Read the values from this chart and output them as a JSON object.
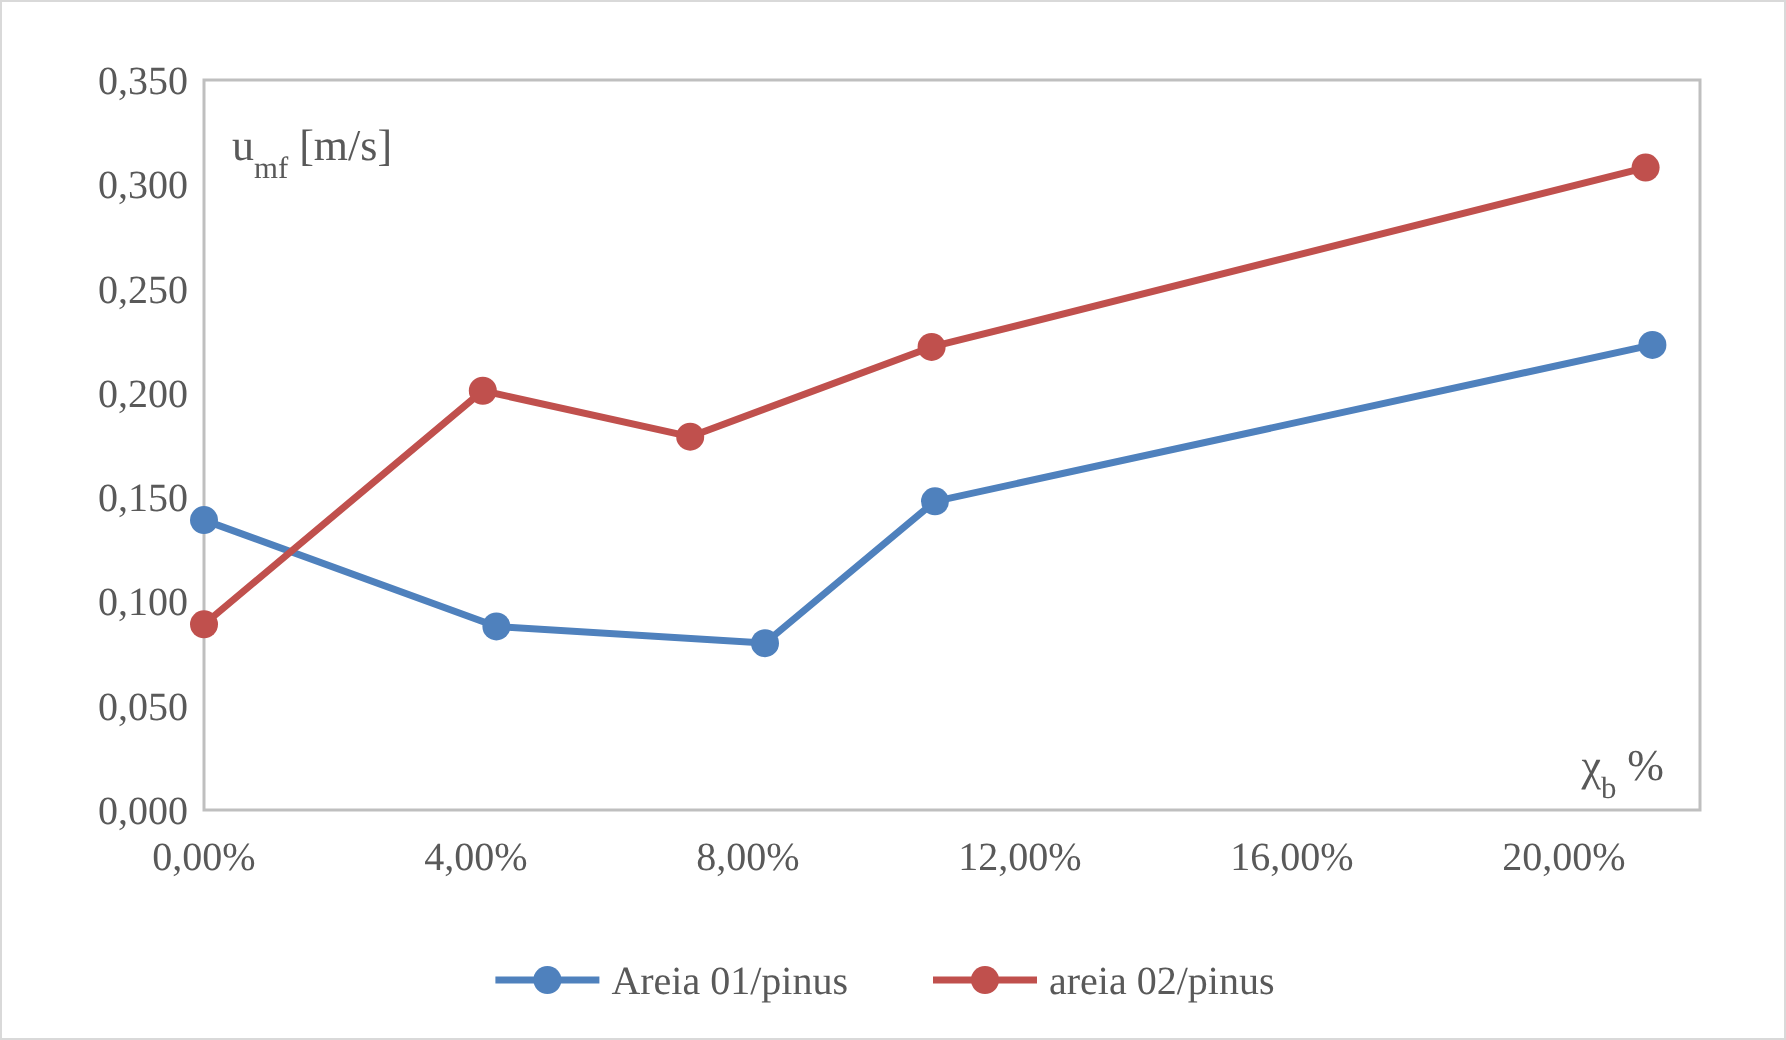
{
  "chart_data": {
    "type": "line",
    "xlabel": "χ$_{b}$ %",
    "ylabel": "u$_{mf}$ [m/s]",
    "xlim": [
      0,
      0.22
    ],
    "xticks": [
      {
        "value": 0,
        "label": "0,00%"
      },
      {
        "value": 0.04,
        "label": "4,00%"
      },
      {
        "value": 0.08,
        "label": "8,00%"
      },
      {
        "value": 0.12,
        "label": "12,00%"
      },
      {
        "value": 0.16,
        "label": "16,00%"
      },
      {
        "value": 0.2,
        "label": "20,00%"
      }
    ],
    "ylim": [
      0,
      0.35
    ],
    "yticks": [
      {
        "value": 0,
        "label": "0,000"
      },
      {
        "value": 0.05,
        "label": "0,050"
      },
      {
        "value": 0.1,
        "label": "0,100"
      },
      {
        "value": 0.15,
        "label": "0,150"
      },
      {
        "value": 0.2,
        "label": "0,200"
      },
      {
        "value": 0.25,
        "label": "0,250"
      },
      {
        "value": 0.3,
        "label": "0,300"
      },
      {
        "value": 0.35,
        "label": "0,350"
      }
    ],
    "series": [
      {
        "name": "Areia 01/pinus",
        "color": "#4f81bd",
        "x": [
          0,
          0.043,
          0.0825,
          0.1075,
          0.213
        ],
        "values": [
          0.139,
          0.088,
          0.08,
          0.148,
          0.223
        ]
      },
      {
        "name": "areia 02/pinus",
        "color": "#c0504d",
        "x": [
          0,
          0.041,
          0.0715,
          0.107,
          0.212
        ],
        "values": [
          0.089,
          0.201,
          0.179,
          0.222,
          0.308
        ]
      }
    ],
    "marker": "circle",
    "line_style": "solid",
    "grid": false,
    "legend": "bottom"
  }
}
